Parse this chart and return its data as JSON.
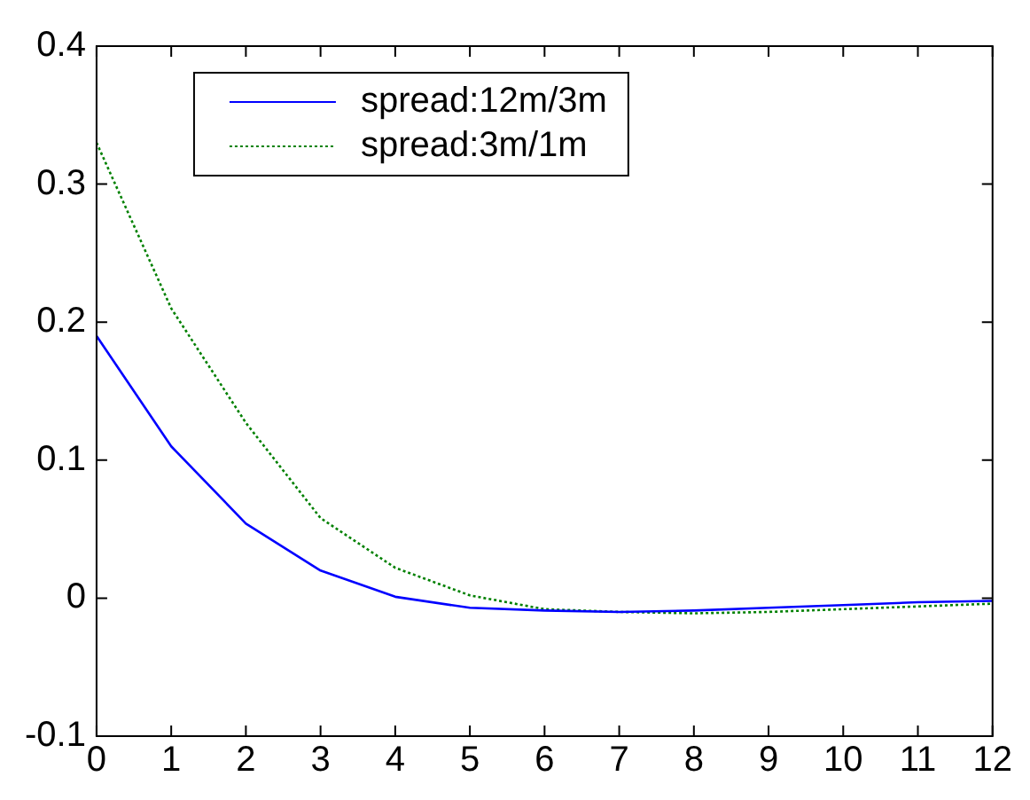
{
  "chart_data": {
    "type": "line",
    "x": [
      0,
      1,
      2,
      3,
      4,
      5,
      6,
      7,
      8,
      9,
      10,
      11,
      12
    ],
    "series": [
      {
        "name": "spread:12m/3m",
        "color": "#0000ff",
        "line_style": "solid",
        "values": [
          0.19,
          0.11,
          0.054,
          0.02,
          0.001,
          -0.007,
          -0.009,
          -0.01,
          -0.009,
          -0.007,
          -0.005,
          -0.003,
          -0.002
        ]
      },
      {
        "name": "spread:3m/1m",
        "color": "#008000",
        "line_style": "dotted",
        "values": [
          0.33,
          0.21,
          0.127,
          0.058,
          0.022,
          0.002,
          -0.008,
          -0.01,
          -0.011,
          -0.01,
          -0.008,
          -0.006,
          -0.004
        ]
      }
    ],
    "xlim": [
      0,
      12
    ],
    "xticks": [
      0,
      1,
      2,
      3,
      4,
      5,
      6,
      7,
      8,
      9,
      10,
      11,
      12
    ],
    "ylim": [
      -0.1,
      0.4
    ],
    "yticks": [
      -0.1,
      0,
      0.1,
      0.2,
      0.3,
      0.4
    ],
    "grid": false,
    "legend": "top left",
    "marker": "none"
  }
}
